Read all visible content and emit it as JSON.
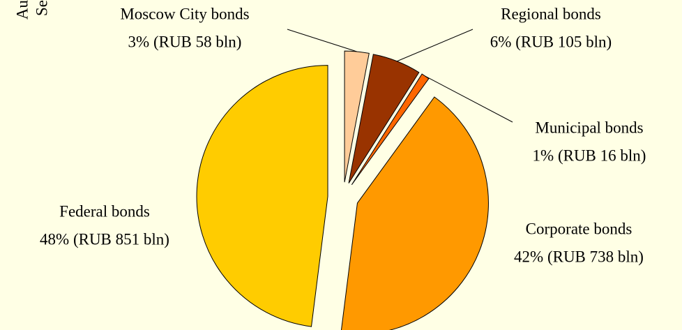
{
  "chart_data": {
    "type": "pie",
    "categories": [
      "Moscow City bonds",
      "Regional bonds",
      "Municipal bonds",
      "Corporate bonds",
      "Federal bonds"
    ],
    "values": [
      3,
      6,
      1,
      42,
      48
    ],
    "value_labels": [
      "3% (RUB 58 bln)",
      "6% (RUB 105 bln)",
      "1% (RUB 16 bln)",
      "42% (RUB 738 bln)",
      "48% (RUB 851 bln)"
    ],
    "colors": [
      "#FFCC99",
      "#993300",
      "#FF6600",
      "#FF9900",
      "#FFCC00"
    ],
    "annotations": [
      "Au",
      "Se"
    ]
  }
}
